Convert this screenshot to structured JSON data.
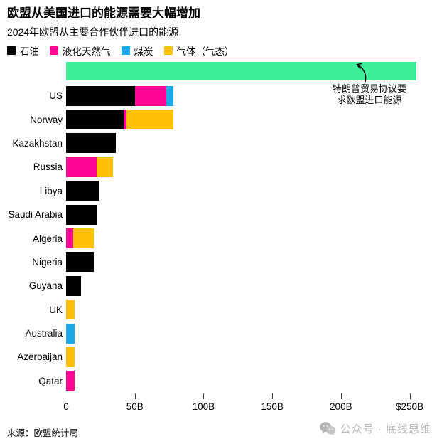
{
  "header": {
    "title": "欧盟从美国进口的能源需要大幅增加",
    "subtitle": "2024年欧盟从主要合作伙伴进口的能源"
  },
  "legend": [
    {
      "label": "石油",
      "color": "#000000"
    },
    {
      "label": "液化天然气",
      "color": "#ff0596"
    },
    {
      "label": "煤炭",
      "color": "#1ba9e8"
    },
    {
      "label": "气体（气态）",
      "color": "#ffc107"
    }
  ],
  "annotation": {
    "line1": "特朗普贸易协议要",
    "line2": "求欧盟进口能源"
  },
  "chart_data": {
    "type": "bar",
    "orientation": "horizontal",
    "stacked": true,
    "unit": "billion USD",
    "axis_max": 258,
    "grid": false,
    "categories": [
      "US",
      "Norway",
      "Kazakhstan",
      "Russia",
      "Libya",
      "Saudi Arabia",
      "Algeria",
      "Nigeria",
      "Guyana",
      "UK",
      "Australia",
      "Azerbaijan",
      "Qatar"
    ],
    "series": [
      {
        "name": "石油",
        "color": "#000000",
        "values": [
          50,
          42,
          36,
          0,
          24,
          22,
          0,
          20,
          11,
          0,
          0,
          0,
          0
        ]
      },
      {
        "name": "液化天然气",
        "color": "#ff0596",
        "values": [
          23,
          2,
          0,
          22,
          0,
          0,
          5,
          0,
          0,
          0,
          0,
          0,
          6
        ]
      },
      {
        "name": "煤炭",
        "color": "#1ba9e8",
        "values": [
          5,
          0,
          0,
          0,
          0,
          0,
          0,
          0,
          0,
          0,
          6,
          0,
          0
        ]
      },
      {
        "name": "气体（气态）",
        "color": "#ffc107",
        "values": [
          0,
          34,
          0,
          12,
          0,
          0,
          15,
          0,
          0,
          6,
          0,
          6,
          0
        ]
      }
    ],
    "reference_bar": {
      "label": "特朗普贸易协议要求欧盟进口能源",
      "value": 255,
      "color": "#3cee97"
    },
    "x_ticks": [
      {
        "value": 0,
        "label": "0"
      },
      {
        "value": 50,
        "label": "50B"
      },
      {
        "value": 100,
        "label": "100B"
      },
      {
        "value": 150,
        "label": "150B"
      },
      {
        "value": 200,
        "label": "200B"
      },
      {
        "value": 250,
        "label": "$250B"
      }
    ]
  },
  "footer": {
    "source": "来源：欧盟统计局",
    "watermark": "公众号 · 底线思维"
  }
}
